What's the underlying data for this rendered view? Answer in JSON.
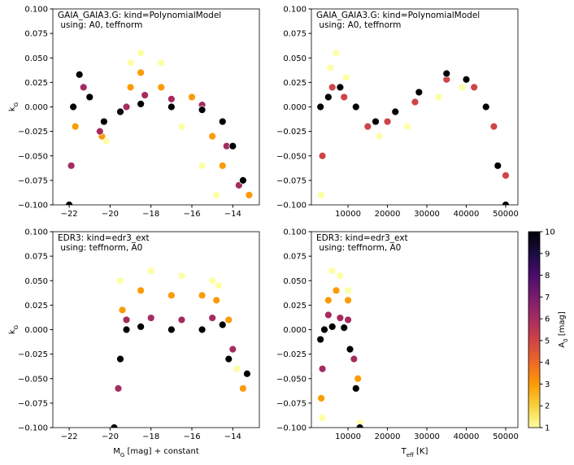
{
  "chart_data": [
    {
      "type": "scatter",
      "annotation": [
        "GAIA_GAIA3.G: kind=PolynomialModel",
        " using: A0, teffnorm"
      ],
      "ylabel": [
        "k",
        "G"
      ],
      "xlim": [
        -22.8,
        -12.7
      ],
      "ylim": [
        -0.1,
        0.1
      ],
      "xticks": [
        {
          "value": -22,
          "label": "−22"
        },
        {
          "value": -20,
          "label": "−20"
        },
        {
          "value": -18,
          "label": "−18"
        },
        {
          "value": -16,
          "label": "−16"
        },
        {
          "value": -14,
          "label": "−14"
        }
      ],
      "yticks": [
        {
          "value": -0.1,
          "label": "−0.100"
        },
        {
          "value": -0.075,
          "label": "−0.075"
        },
        {
          "value": -0.05,
          "label": "−0.050"
        },
        {
          "value": -0.025,
          "label": "−0.025"
        },
        {
          "value": 0,
          "label": "0.000"
        },
        0.025,
        {
          "value": 0.05,
          "label": "0.050"
        },
        0.075,
        {
          "value": 0.1,
          "label": "0.100"
        }
      ],
      "x": [
        -20.2,
        -19,
        -18.5,
        -17.5,
        -16.5,
        -15.5,
        -14.8,
        -21.7,
        -20.4,
        -19,
        -18.5,
        -17.5,
        -16,
        -15,
        -14.5,
        -13.2,
        -21.9,
        -21.3,
        -20.5,
        -19.2,
        -18.3,
        -17,
        -15.5,
        -14.3,
        -13.7,
        -22,
        -21.8,
        -21.5,
        -21,
        -20.3,
        -19.5,
        -18.5,
        -17,
        -15.5,
        -14.5,
        -14,
        -13.5
      ],
      "y": [
        -0.035,
        0.045,
        0.055,
        0.045,
        -0.02,
        -0.06,
        -0.09,
        -0.02,
        -0.03,
        0.02,
        0.035,
        0.02,
        0.01,
        -0.03,
        -0.06,
        -0.09,
        -0.06,
        0.02,
        -0.025,
        0,
        0.012,
        0.008,
        0.002,
        -0.04,
        -0.08,
        -0.1,
        0,
        0.033,
        0.01,
        -0.015,
        -0.005,
        0.003,
        0,
        -0.003,
        -0.015,
        -0.04,
        -0.075
      ],
      "c": [
        1,
        1,
        1,
        1,
        1,
        1,
        1,
        3,
        3,
        3,
        3,
        3,
        3,
        3,
        3,
        3,
        6,
        6,
        6,
        6,
        6,
        6,
        6,
        6,
        6,
        10,
        10,
        10,
        10,
        10,
        10,
        10,
        10,
        10,
        10,
        10,
        10
      ]
    },
    {
      "type": "scatter",
      "annotation": [
        "GAIA_GAIA3.G: kind=PolynomialModel",
        " using: A0, teffnorm"
      ],
      "xlim": [
        700,
        53100
      ],
      "ylim": [
        -0.1,
        0.1
      ],
      "xticks": [
        10000,
        20000,
        30000,
        40000,
        50000
      ],
      "yticks": [
        {
          "value": -0.1,
          "label": "−0.100"
        },
        {
          "value": -0.075,
          "label": "−0.075"
        },
        {
          "value": -0.05,
          "label": "−0.050"
        },
        {
          "value": -0.025,
          "label": "−0.025"
        },
        {
          "value": 0,
          "label": "0.000"
        },
        0.025,
        {
          "value": 0.05,
          "label": "0.050"
        },
        0.075,
        {
          "value": 0.1,
          "label": "0.100"
        }
      ],
      "x": [
        3200,
        5500,
        7000,
        9500,
        18000,
        25000,
        33000,
        39000,
        45000,
        3500,
        6000,
        9000,
        15000,
        20000,
        27000,
        35000,
        42000,
        47000,
        50000,
        3000,
        5000,
        8000,
        12000,
        17000,
        22000,
        28000,
        35000,
        40000,
        45000,
        48000,
        50000
      ],
      "y": [
        -0.09,
        0.04,
        0.055,
        0.03,
        -0.03,
        -0.02,
        0.01,
        0.02,
        0,
        -0.05,
        0.02,
        0.01,
        -0.02,
        -0.015,
        0.005,
        0.028,
        0.02,
        -0.02,
        -0.07,
        0,
        0.01,
        0.02,
        0,
        -0.015,
        -0.005,
        0.015,
        0.034,
        0.028,
        0,
        -0.06,
        -0.1
      ],
      "c": [
        1,
        1,
        1,
        1,
        1,
        1,
        1,
        1,
        1,
        5,
        5,
        5,
        5,
        5,
        5,
        5,
        5,
        5,
        5,
        10,
        10,
        10,
        10,
        10,
        10,
        10,
        10,
        10,
        10,
        10,
        10
      ]
    },
    {
      "type": "scatter",
      "annotation": [
        "EDR3: kind=edr3_ext",
        " using: teffnorm, A0"
      ],
      "ylabel": [
        "k",
        "G"
      ],
      "xlabel": [
        "M",
        "G",
        " [mag] + constant"
      ],
      "xlim": [
        -22.8,
        -12.7
      ],
      "ylim": [
        -0.1,
        0.1
      ],
      "xticks": [
        {
          "value": -22,
          "label": "−22"
        },
        {
          "value": -20,
          "label": "−20"
        },
        {
          "value": -18,
          "label": "−18"
        },
        {
          "value": -16,
          "label": "−16"
        },
        {
          "value": -14,
          "label": "−14"
        }
      ],
      "yticks": [
        {
          "value": -0.1,
          "label": "−0.100"
        },
        {
          "value": -0.075,
          "label": "−0.075"
        },
        {
          "value": -0.05,
          "label": "−0.050"
        },
        {
          "value": -0.025,
          "label": "−0.025"
        },
        {
          "value": 0,
          "label": "0.000"
        },
        0.025,
        {
          "value": 0.05,
          "label": "0.050"
        },
        0.075,
        {
          "value": 0.1,
          "label": "0.100"
        }
      ],
      "x": [
        -19.5,
        -18,
        -16.5,
        -15,
        -14.7,
        -13.8,
        -19.4,
        -18.5,
        -17,
        -15.5,
        -14.8,
        -14.2,
        -13.5,
        -19.6,
        -19.2,
        -18,
        -16.5,
        -15,
        -14,
        -19.8,
        -19.5,
        -19.2,
        -18.5,
        -17,
        -15.5,
        -14.5,
        -14.2,
        -13.3
      ],
      "y": [
        0.05,
        0.06,
        0.055,
        0.05,
        0.045,
        -0.04,
        0.02,
        0.04,
        0.035,
        0.035,
        0.03,
        0.01,
        -0.06,
        -0.06,
        0.01,
        0.012,
        0.01,
        0.012,
        -0.02,
        -0.1,
        -0.03,
        0,
        0.003,
        0,
        0,
        0.005,
        -0.03,
        -0.045
      ],
      "c": [
        1,
        1,
        1,
        1,
        1,
        1,
        3,
        3,
        3,
        3,
        3,
        3,
        3,
        6,
        6,
        6,
        6,
        6,
        6,
        10,
        10,
        10,
        10,
        10,
        10,
        10,
        10,
        10
      ]
    },
    {
      "type": "scatter",
      "annotation": [
        "EDR3: kind=edr3_ext",
        " using: teffnorm, A0"
      ],
      "xlabel": [
        "T",
        "eff",
        " [K]"
      ],
      "xlim": [
        700,
        53100
      ],
      "ylim": [
        -0.1,
        0.1
      ],
      "xticks": [
        10000,
        20000,
        30000,
        40000,
        50000
      ],
      "yticks": [
        {
          "value": -0.1,
          "label": "−0.100"
        },
        {
          "value": -0.075,
          "label": "−0.075"
        },
        {
          "value": -0.05,
          "label": "−0.050"
        },
        {
          "value": -0.025,
          "label": "−0.025"
        },
        {
          "value": 0,
          "label": "0.000"
        },
        0.025,
        {
          "value": 0.05,
          "label": "0.050"
        },
        0.075,
        {
          "value": 0.1,
          "label": "0.100"
        }
      ],
      "x": [
        3500,
        6000,
        8000,
        10000,
        13000,
        3200,
        5000,
        7000,
        10000,
        12500,
        3500,
        5000,
        8000,
        10000,
        11500,
        3000,
        4000,
        6000,
        9000,
        10500,
        12000,
        13000
      ],
      "y": [
        -0.09,
        0.06,
        0.055,
        0.04,
        -0.095,
        -0.07,
        0.03,
        0.04,
        0.03,
        -0.05,
        -0.04,
        0.015,
        0.012,
        0.01,
        -0.03,
        -0.01,
        0,
        0.003,
        0.002,
        -0.02,
        -0.06,
        -0.1
      ],
      "c": [
        1,
        1,
        1,
        1,
        1,
        3,
        3,
        3,
        3,
        3,
        6,
        6,
        6,
        6,
        6,
        10,
        10,
        10,
        10,
        10,
        10,
        10
      ]
    }
  ],
  "colorbar": {
    "label": [
      "A",
      "0",
      " [mag]"
    ],
    "lim": [
      1,
      10
    ],
    "ticks": [
      1,
      2,
      3,
      4,
      5,
      6,
      7,
      8,
      9,
      10
    ],
    "colormap": [
      "#fcffa4",
      "#f7d13d",
      "#fb9b06",
      "#ed6925",
      "#cf4446",
      "#a52c60",
      "#781c6d",
      "#4a0c6b",
      "#1b0c41",
      "#000004"
    ]
  }
}
